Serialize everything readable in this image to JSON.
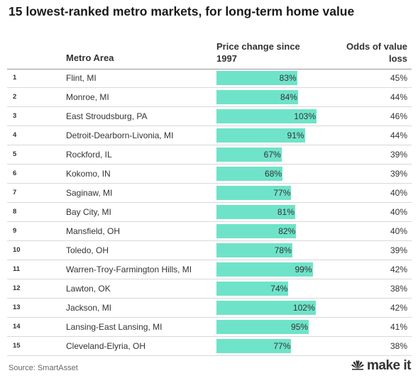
{
  "title": "15 lowest-ranked metro markets, for long-term home value",
  "headers": {
    "metro": "Metro Area",
    "price": "Price change since 1997",
    "odds": "Odds of value loss"
  },
  "source": "Source: SmartAsset",
  "logo_text": "make it",
  "colors": {
    "bar": "#6fe3c9"
  },
  "chart_data": {
    "type": "bar",
    "orientation": "horizontal",
    "title": "15 lowest-ranked metro markets, for long-term home value",
    "categories": [
      "Flint, MI",
      "Monroe, MI",
      "East Stroudsburg, PA",
      "Detroit-Dearborn-Livonia, MI",
      "Rockford, IL",
      "Kokomo, IN",
      "Saginaw, MI",
      "Bay City, MI",
      "Mansfield, OH",
      "Toledo, OH",
      "Warren-Troy-Farmington Hills, MI",
      "Lawton, OK",
      "Jackson, MI",
      "Lansing-East Lansing, MI",
      "Cleveland-Elyria, OH"
    ],
    "ranks": [
      "1",
      "2",
      "3",
      "4",
      "5",
      "6",
      "7",
      "8",
      "9",
      "10",
      "11",
      "12",
      "13",
      "14",
      "15"
    ],
    "series": [
      {
        "name": "Price change since 1997",
        "values": [
          83,
          84,
          103,
          91,
          67,
          68,
          77,
          81,
          82,
          78,
          99,
          74,
          102,
          95,
          77
        ],
        "labels": [
          "83%",
          "84%",
          "103%",
          "91%",
          "67%",
          "68%",
          "77%",
          "81%",
          "82%",
          "78%",
          "99%",
          "74%",
          "102%",
          "95%",
          "77%"
        ]
      },
      {
        "name": "Odds of value loss",
        "values": [
          45,
          44,
          46,
          44,
          39,
          39,
          40,
          40,
          40,
          39,
          42,
          38,
          42,
          41,
          38
        ],
        "labels": [
          "45%",
          "44%",
          "46%",
          "44%",
          "39%",
          "39%",
          "40%",
          "40%",
          "40%",
          "39%",
          "42%",
          "38%",
          "42%",
          "41%",
          "38%"
        ]
      }
    ],
    "xlim": [
      0,
      103
    ]
  }
}
